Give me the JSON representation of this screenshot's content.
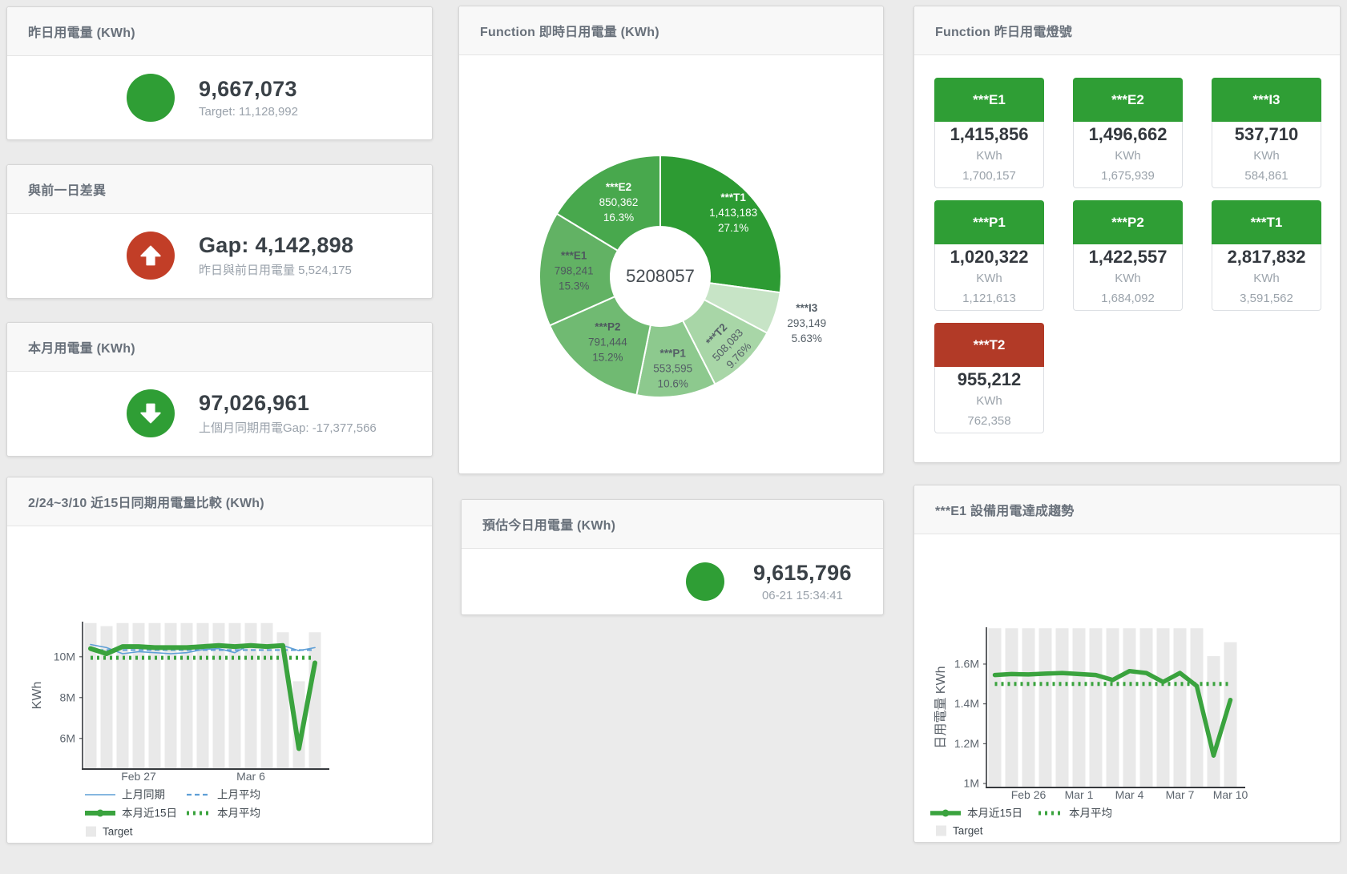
{
  "colors": {
    "green": "#2f9e35",
    "red_circle": "#c23e27",
    "tile_red": "#b23a27",
    "blue": "#5f9fd6",
    "green_line": "#3aa33e",
    "bar": "#e9e9e9"
  },
  "panels": {
    "yesterday": {
      "title": "昨日用電量 (KWh)",
      "value": "9,667,073",
      "subtext": "Target: 11,128,992"
    },
    "gap_prev_day": {
      "title": "與前一日差異",
      "value": "Gap: 4,142,898",
      "subtext": "昨日與前日用電量 5,524,175"
    },
    "month": {
      "title": "本月用電量 (KWh)",
      "value": "97,026,961",
      "subtext": "上個月同期用電Gap: -17,377,566"
    },
    "compare15": {
      "title": "2/24~3/10 近15日同期用電量比較 (KWh)"
    },
    "realtime_donut": {
      "title": "Function 即時日用電量 (KWh)"
    },
    "estimate_today": {
      "title": "預估今日用電量 (KWh)",
      "value": "9,615,796",
      "subtext": "06-21 15:34:41"
    },
    "lights": {
      "title": "Function 昨日用電燈號",
      "tiles": [
        {
          "name": "***E1",
          "value": "1,415,856",
          "unit": "KWh",
          "target": "1,700,157",
          "status": "green"
        },
        {
          "name": "***E2",
          "value": "1,496,662",
          "unit": "KWh",
          "target": "1,675,939",
          "status": "green"
        },
        {
          "name": "***I3",
          "value": "537,710",
          "unit": "KWh",
          "target": "584,861",
          "status": "green"
        },
        {
          "name": "***P1",
          "value": "1,020,322",
          "unit": "KWh",
          "target": "1,121,613",
          "status": "green"
        },
        {
          "name": "***P2",
          "value": "1,422,557",
          "unit": "KWh",
          "target": "1,684,092",
          "status": "green"
        },
        {
          "name": "***T1",
          "value": "2,817,832",
          "unit": "KWh",
          "target": "3,591,562",
          "status": "green"
        },
        {
          "name": "***T2",
          "value": "955,212",
          "unit": "KWh",
          "target": "762,358",
          "status": "red"
        }
      ]
    },
    "e1_trend": {
      "title": "***E1 設備用電達成趨勢"
    }
  },
  "chart_data": [
    {
      "type": "pie",
      "title": "Function 即時日用電量 (KWh)",
      "center_total": "5208057",
      "slices": [
        {
          "name": "***T1",
          "value": 1413183,
          "display": "1,413,183",
          "pct": "27.1%",
          "color": "#2d9b33",
          "text": "#ffffff"
        },
        {
          "name": "***I3",
          "value": 293149,
          "display": "293,149",
          "pct": "5.63%",
          "color": "#c7e4c6",
          "text": "#545e66",
          "outside": true
        },
        {
          "name": "***T2",
          "value": 508083,
          "display": "508,083",
          "pct": "9.76%",
          "color": "#a8d6a7",
          "text": "#545e66",
          "rotate": -47
        },
        {
          "name": "***P1",
          "value": 553595,
          "display": "553,595",
          "pct": "10.6%",
          "color": "#8dc98e",
          "text": "#545e66"
        },
        {
          "name": "***P2",
          "value": 791444,
          "display": "791,444",
          "pct": "15.2%",
          "color": "#70ba72",
          "text": "#4e585e"
        },
        {
          "name": "***E1",
          "value": 798241,
          "display": "798,241",
          "pct": "15.3%",
          "color": "#62b264",
          "text": "#4e585e"
        },
        {
          "name": "***E2",
          "value": 850362,
          "display": "850,362",
          "pct": "16.3%",
          "color": "#48a84d",
          "text": "#ffffff"
        }
      ]
    },
    {
      "type": "line",
      "title": "2/24~3/10 近15日同期用電量比較 (KWh)",
      "ylabel": "KWh",
      "ylim": [
        4.5,
        11.72
      ],
      "grid": false,
      "legend_position": "bottom",
      "yticks": [
        {
          "value": 6,
          "label": "6M"
        },
        {
          "value": 8,
          "label": "8M"
        },
        {
          "value": 10,
          "label": "10M"
        }
      ],
      "categories": [
        "Feb 24",
        "Feb 25",
        "Feb 26",
        "Feb 27",
        "Feb 28",
        "Mar 1",
        "Mar 2",
        "Mar 3",
        "Mar 4",
        "Mar 5",
        "Mar 6",
        "Mar 7",
        "Mar 8",
        "Mar 9",
        "Mar 10"
      ],
      "xticks": [
        {
          "index": 3,
          "label": "Feb 27"
        },
        {
          "index": 10,
          "label": "Mar 6"
        }
      ],
      "target_bars": {
        "name": "Target",
        "unit": "M KWh",
        "values": [
          11.65,
          11.5,
          11.65,
          11.65,
          11.65,
          11.65,
          11.65,
          11.65,
          11.65,
          11.65,
          11.65,
          11.65,
          11.2,
          8.8,
          11.2
        ]
      },
      "series": [
        {
          "name": "上月同期",
          "kind": "line",
          "color": "#5f9fd6",
          "width": 1.6,
          "dash": "",
          "values": [
            10.6,
            10.45,
            10.15,
            10.25,
            10.2,
            10.15,
            10.2,
            10.35,
            10.4,
            10.2,
            10.6,
            10.55,
            10.55,
            10.3,
            10.45
          ]
        },
        {
          "name": "上月平均",
          "kind": "hline",
          "color": "#5f9fd6",
          "width": 2.2,
          "dash": "6 4",
          "value": 10.33
        },
        {
          "name": "本月近15日",
          "kind": "line",
          "color": "#3aa33e",
          "width": 6,
          "dash": "",
          "values": [
            10.4,
            10.15,
            10.5,
            10.5,
            10.45,
            10.45,
            10.45,
            10.5,
            10.55,
            10.5,
            10.55,
            10.5,
            10.55,
            5.5,
            9.7
          ]
        },
        {
          "name": "本月平均",
          "kind": "hline",
          "color": "#3aa33e",
          "width": 5,
          "dash": "3 5",
          "value": 9.95
        }
      ]
    },
    {
      "type": "line",
      "title": "***E1 設備用電達成趨勢",
      "ylabel": "日用電量 KWh",
      "ylim": [
        0.98,
        1.785
      ],
      "grid": false,
      "legend_position": "bottom",
      "yticks": [
        {
          "value": 1,
          "label": "1M"
        },
        {
          "value": 1.2,
          "label": "1.2M"
        },
        {
          "value": 1.4,
          "label": "1.4M"
        },
        {
          "value": 1.6,
          "label": "1.6M"
        }
      ],
      "categories": [
        "Feb 24",
        "Feb 25",
        "Feb 26",
        "Feb 27",
        "Feb 28",
        "Mar 1",
        "Mar 2",
        "Mar 3",
        "Mar 4",
        "Mar 5",
        "Mar 6",
        "Mar 7",
        "Mar 8",
        "Mar 9",
        "Mar 10"
      ],
      "xticks": [
        {
          "index": 2,
          "label": "Feb 26"
        },
        {
          "index": 5,
          "label": "Mar 1"
        },
        {
          "index": 8,
          "label": "Mar 4"
        },
        {
          "index": 11,
          "label": "Mar 7"
        },
        {
          "index": 14,
          "label": "Mar 10"
        }
      ],
      "target_bars": {
        "name": "Target",
        "unit": "M KWh",
        "values": [
          1.78,
          1.78,
          1.78,
          1.78,
          1.78,
          1.78,
          1.78,
          1.78,
          1.78,
          1.78,
          1.78,
          1.78,
          1.78,
          1.64,
          1.71
        ]
      },
      "series": [
        {
          "name": "本月近15日",
          "kind": "line",
          "color": "#3aa33e",
          "width": 5.5,
          "dash": "",
          "values": [
            1.545,
            1.55,
            1.548,
            1.552,
            1.555,
            1.55,
            1.545,
            1.52,
            1.565,
            1.555,
            1.51,
            1.555,
            1.49,
            1.14,
            1.42
          ]
        },
        {
          "name": "本月平均",
          "kind": "hline",
          "color": "#3aa33e",
          "width": 5,
          "dash": "3 5",
          "value": 1.5
        }
      ]
    }
  ]
}
